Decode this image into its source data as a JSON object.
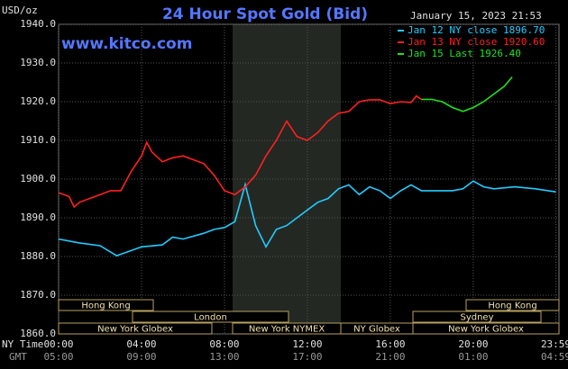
{
  "chart_data": {
    "type": "line",
    "title": "24 Hour Spot Gold (Bid)",
    "timestamp": "January 15, 2023 21:53",
    "watermark": "www.kitco.com",
    "y_label": "USD/oz",
    "x_label": "NY Time",
    "x2_label": "GMT",
    "ylim": [
      1860,
      1940
    ],
    "yticks": [
      {
        "value": 1860,
        "label": "1860.0"
      },
      {
        "value": 1870,
        "label": "1870.0"
      },
      {
        "value": 1880,
        "label": "1880.0"
      },
      {
        "value": 1890,
        "label": "1890.0"
      },
      {
        "value": 1900,
        "label": "1900.0"
      },
      {
        "value": 1910,
        "label": "1910.0"
      },
      {
        "value": 1920,
        "label": "1920.0"
      },
      {
        "value": 1930,
        "label": "1930.0"
      },
      {
        "value": 1940,
        "label": "1940.0"
      }
    ],
    "xlim": [
      0,
      23.983
    ],
    "xticks": [
      {
        "value": 0,
        "label": "00:00"
      },
      {
        "value": 4,
        "label": "04:00"
      },
      {
        "value": 8,
        "label": "08:00"
      },
      {
        "value": 12,
        "label": "12:00"
      },
      {
        "value": 16,
        "label": "16:00"
      },
      {
        "value": 20,
        "label": "20:00"
      },
      {
        "value": 23.983,
        "label": "23:59"
      }
    ],
    "x2ticks": [
      "05:00",
      "09:00",
      "13:00",
      "17:00",
      "21:00",
      "01:00",
      "04:59"
    ],
    "grid": true,
    "sessions": [
      "Hong Kong",
      "Hong Kong",
      "London",
      "Sydney",
      "New York Globex",
      "New York NYMEX",
      "NY Globex",
      "New York Globex"
    ],
    "series": [
      {
        "name": "Jan 12 NY close 1896.70",
        "color": "#22ccff",
        "x": [
          0,
          1,
          2,
          2.8,
          4,
          5,
          5.5,
          6,
          7,
          7.5,
          8,
          8.5,
          9,
          9.5,
          10,
          10.5,
          11,
          11.5,
          12,
          12.5,
          13,
          13.5,
          14,
          14.5,
          15,
          15.5,
          16,
          16.5,
          17,
          17.5,
          18,
          19,
          19.5,
          20,
          20.5,
          21,
          22,
          23,
          23.983
        ],
        "values": [
          1884.5,
          1883.5,
          1882.8,
          1880.2,
          1882.5,
          1883,
          1885,
          1884.5,
          1886,
          1887,
          1887.5,
          1889,
          1898.6,
          1888,
          1882.5,
          1887,
          1888,
          1890,
          1892,
          1894,
          1895,
          1897.5,
          1898.5,
          1896,
          1898,
          1897,
          1895,
          1897,
          1898.5,
          1897,
          1897,
          1897,
          1897.5,
          1899.5,
          1898,
          1897.5,
          1898,
          1897.5,
          1896.7
        ]
      },
      {
        "name": "Jan 13 NY close 1920.60",
        "color": "#ff2020",
        "x": [
          0,
          0.5,
          0.75,
          1,
          2,
          2.5,
          3,
          3.5,
          4,
          4.25,
          4.5,
          5,
          5.5,
          6,
          6.5,
          7,
          7.5,
          8,
          8.5,
          9,
          9.5,
          10,
          10.5,
          11,
          11.5,
          12,
          12.5,
          13,
          13.5,
          14,
          14.5,
          15,
          15.5,
          16,
          16.5,
          17,
          17.25,
          17.5
        ],
        "values": [
          1896.5,
          1895.5,
          1892.8,
          1894,
          1896,
          1897,
          1897,
          1902,
          1906,
          1909.5,
          1907,
          1904.5,
          1905.5,
          1906,
          1905,
          1904,
          1901,
          1897,
          1896,
          1898,
          1901,
          1906,
          1910,
          1915,
          1911,
          1910,
          1912,
          1915,
          1917,
          1917.5,
          1920,
          1920.5,
          1920.5,
          1919.5,
          1920,
          1919.8,
          1921.5,
          1920.6
        ]
      },
      {
        "name": "Jan 15 Last 1926.40",
        "color": "#20e020",
        "x": [
          17.5,
          18,
          18.5,
          19,
          19.5,
          20,
          20.5,
          21,
          21.5,
          21.88
        ],
        "values": [
          1920.6,
          1920.6,
          1920,
          1918.5,
          1917.5,
          1918.5,
          1920,
          1922,
          1924,
          1926.4
        ]
      }
    ]
  }
}
